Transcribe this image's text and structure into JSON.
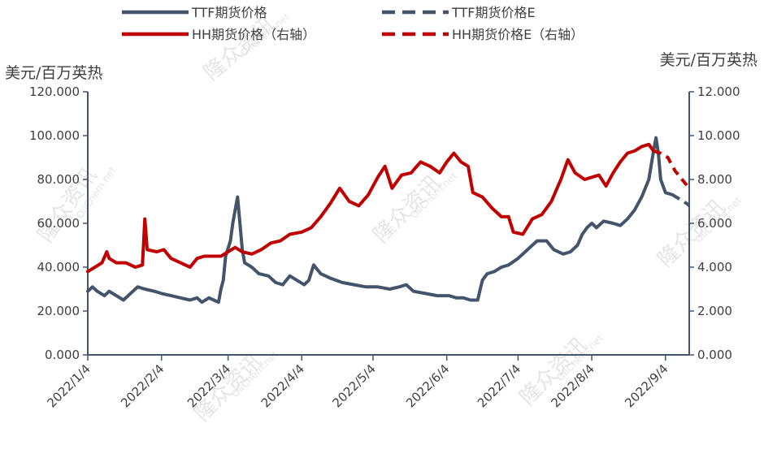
{
  "chart_data": {
    "type": "line",
    "left_unit": "美元/百万英热",
    "right_unit": "美元/百万英热",
    "left_axis": {
      "min": 0,
      "max": 120,
      "ticks": [
        "0.000",
        "20.000",
        "40.000",
        "60.000",
        "80.000",
        "100.000",
        "120.000"
      ]
    },
    "right_axis": {
      "min": 0,
      "max": 12,
      "ticks": [
        "0.000",
        "2.000",
        "4.000",
        "6.000",
        "8.000",
        "10.000",
        "12.000"
      ]
    },
    "x_range": [
      "2022-01-04",
      "2022-09-14"
    ],
    "x_ticks": [
      {
        "date": "2022-01-04",
        "label": "2022/1/4"
      },
      {
        "date": "2022-02-04",
        "label": "2022/2/4"
      },
      {
        "date": "2022-03-04",
        "label": "2022/3/4"
      },
      {
        "date": "2022-04-04",
        "label": "2022/4/4"
      },
      {
        "date": "2022-05-04",
        "label": "2022/5/4"
      },
      {
        "date": "2022-06-04",
        "label": "2022/6/4"
      },
      {
        "date": "2022-07-04",
        "label": "2022/7/4"
      },
      {
        "date": "2022-08-04",
        "label": "2022/8/4"
      },
      {
        "date": "2022-09-04",
        "label": "2022/9/4"
      }
    ],
    "legend": [
      {
        "label": "TTF期货价格",
        "color": "#44546a",
        "dash": false
      },
      {
        "label": "TTF期货价格E",
        "color": "#44546a",
        "dash": true
      },
      {
        "label": "HH期货价格（右轴）",
        "color": "#c00000",
        "dash": false
      },
      {
        "label": "HH期货价格E（右轴）",
        "color": "#c00000",
        "dash": true
      }
    ],
    "series": [
      {
        "name": "TTF期货价格",
        "axis": "left",
        "color": "#44546a",
        "points": [
          [
            "2022-01-04",
            29
          ],
          [
            "2022-01-06",
            31
          ],
          [
            "2022-01-08",
            29
          ],
          [
            "2022-01-11",
            27
          ],
          [
            "2022-01-13",
            29
          ],
          [
            "2022-01-16",
            27
          ],
          [
            "2022-01-19",
            25
          ],
          [
            "2022-01-22",
            28
          ],
          [
            "2022-01-25",
            31
          ],
          [
            "2022-01-28",
            30
          ],
          [
            "2022-02-01",
            29
          ],
          [
            "2022-02-04",
            28
          ],
          [
            "2022-02-08",
            27
          ],
          [
            "2022-02-12",
            26
          ],
          [
            "2022-02-16",
            25
          ],
          [
            "2022-02-19",
            26
          ],
          [
            "2022-02-21",
            24
          ],
          [
            "2022-02-24",
            26
          ],
          [
            "2022-02-26",
            25
          ],
          [
            "2022-02-28",
            24
          ],
          [
            "2022-03-01",
            30
          ],
          [
            "2022-03-02",
            34
          ],
          [
            "2022-03-03",
            45
          ],
          [
            "2022-03-05",
            52
          ],
          [
            "2022-03-06",
            60
          ],
          [
            "2022-03-07",
            66
          ],
          [
            "2022-03-08",
            72
          ],
          [
            "2022-03-09",
            60
          ],
          [
            "2022-03-10",
            48
          ],
          [
            "2022-03-11",
            42
          ],
          [
            "2022-03-14",
            40
          ],
          [
            "2022-03-17",
            37
          ],
          [
            "2022-03-21",
            36
          ],
          [
            "2022-03-24",
            33
          ],
          [
            "2022-03-27",
            32
          ],
          [
            "2022-03-30",
            36
          ],
          [
            "2022-04-02",
            34
          ],
          [
            "2022-04-05",
            32
          ],
          [
            "2022-04-07",
            34
          ],
          [
            "2022-04-09",
            41
          ],
          [
            "2022-04-12",
            37
          ],
          [
            "2022-04-16",
            35
          ],
          [
            "2022-04-21",
            33
          ],
          [
            "2022-04-26",
            32
          ],
          [
            "2022-05-01",
            31
          ],
          [
            "2022-05-06",
            31
          ],
          [
            "2022-05-11",
            30
          ],
          [
            "2022-05-15",
            31
          ],
          [
            "2022-05-18",
            32
          ],
          [
            "2022-05-21",
            29
          ],
          [
            "2022-05-26",
            28
          ],
          [
            "2022-05-31",
            27
          ],
          [
            "2022-06-05",
            27
          ],
          [
            "2022-06-08",
            26
          ],
          [
            "2022-06-11",
            26
          ],
          [
            "2022-06-14",
            25
          ],
          [
            "2022-06-17",
            25
          ],
          [
            "2022-06-19",
            34
          ],
          [
            "2022-06-21",
            37
          ],
          [
            "2022-06-24",
            38
          ],
          [
            "2022-06-27",
            40
          ],
          [
            "2022-06-30",
            41
          ],
          [
            "2022-07-04",
            44
          ],
          [
            "2022-07-08",
            48
          ],
          [
            "2022-07-12",
            52
          ],
          [
            "2022-07-16",
            52
          ],
          [
            "2022-07-19",
            48
          ],
          [
            "2022-07-23",
            46
          ],
          [
            "2022-07-26",
            47
          ],
          [
            "2022-07-29",
            50
          ],
          [
            "2022-07-31",
            55
          ],
          [
            "2022-08-02",
            58
          ],
          [
            "2022-08-04",
            60
          ],
          [
            "2022-08-06",
            58
          ],
          [
            "2022-08-09",
            61
          ],
          [
            "2022-08-13",
            60
          ],
          [
            "2022-08-16",
            59
          ],
          [
            "2022-08-19",
            62
          ],
          [
            "2022-08-22",
            66
          ],
          [
            "2022-08-25",
            72
          ],
          [
            "2022-08-28",
            80
          ],
          [
            "2022-08-30",
            93
          ],
          [
            "2022-08-31",
            99
          ],
          [
            "2022-09-01",
            92
          ],
          [
            "2022-09-02",
            80
          ],
          [
            "2022-09-04",
            74
          ],
          [
            "2022-09-07",
            73
          ]
        ]
      },
      {
        "name": "TTF期货价格E",
        "axis": "left",
        "color": "#44546a",
        "dash": true,
        "points": [
          [
            "2022-09-07",
            73
          ],
          [
            "2022-09-10",
            71
          ],
          [
            "2022-09-13",
            69
          ],
          [
            "2022-09-14",
            68
          ]
        ]
      },
      {
        "name": "HH期货价格（右轴）",
        "axis": "right",
        "color": "#c00000",
        "points": [
          [
            "2022-01-04",
            3.8
          ],
          [
            "2022-01-07",
            4.0
          ],
          [
            "2022-01-10",
            4.2
          ],
          [
            "2022-01-12",
            4.7
          ],
          [
            "2022-01-13",
            4.4
          ],
          [
            "2022-01-16",
            4.2
          ],
          [
            "2022-01-20",
            4.2
          ],
          [
            "2022-01-24",
            4.0
          ],
          [
            "2022-01-27",
            4.1
          ],
          [
            "2022-01-28",
            6.2
          ],
          [
            "2022-01-29",
            4.8
          ],
          [
            "2022-02-02",
            4.7
          ],
          [
            "2022-02-05",
            4.8
          ],
          [
            "2022-02-08",
            4.4
          ],
          [
            "2022-02-12",
            4.2
          ],
          [
            "2022-02-16",
            4.0
          ],
          [
            "2022-02-19",
            4.4
          ],
          [
            "2022-02-22",
            4.5
          ],
          [
            "2022-02-25",
            4.5
          ],
          [
            "2022-03-01",
            4.5
          ],
          [
            "2022-03-04",
            4.7
          ],
          [
            "2022-03-07",
            4.9
          ],
          [
            "2022-03-10",
            4.7
          ],
          [
            "2022-03-14",
            4.6
          ],
          [
            "2022-03-18",
            4.8
          ],
          [
            "2022-03-22",
            5.1
          ],
          [
            "2022-03-26",
            5.2
          ],
          [
            "2022-03-30",
            5.5
          ],
          [
            "2022-04-04",
            5.6
          ],
          [
            "2022-04-08",
            5.8
          ],
          [
            "2022-04-12",
            6.3
          ],
          [
            "2022-04-16",
            6.9
          ],
          [
            "2022-04-20",
            7.6
          ],
          [
            "2022-04-24",
            7.0
          ],
          [
            "2022-04-28",
            6.8
          ],
          [
            "2022-05-02",
            7.3
          ],
          [
            "2022-05-06",
            8.1
          ],
          [
            "2022-05-09",
            8.6
          ],
          [
            "2022-05-12",
            7.6
          ],
          [
            "2022-05-16",
            8.2
          ],
          [
            "2022-05-20",
            8.3
          ],
          [
            "2022-05-24",
            8.8
          ],
          [
            "2022-05-28",
            8.6
          ],
          [
            "2022-06-01",
            8.3
          ],
          [
            "2022-06-04",
            8.8
          ],
          [
            "2022-06-07",
            9.2
          ],
          [
            "2022-06-10",
            8.8
          ],
          [
            "2022-06-13",
            8.6
          ],
          [
            "2022-06-15",
            7.4
          ],
          [
            "2022-06-19",
            7.2
          ],
          [
            "2022-06-23",
            6.7
          ],
          [
            "2022-06-27",
            6.3
          ],
          [
            "2022-06-30",
            6.3
          ],
          [
            "2022-07-02",
            5.6
          ],
          [
            "2022-07-06",
            5.5
          ],
          [
            "2022-07-10",
            6.2
          ],
          [
            "2022-07-14",
            6.4
          ],
          [
            "2022-07-18",
            7.0
          ],
          [
            "2022-07-22",
            8.0
          ],
          [
            "2022-07-25",
            8.9
          ],
          [
            "2022-07-28",
            8.3
          ],
          [
            "2022-08-01",
            8.0
          ],
          [
            "2022-08-04",
            8.1
          ],
          [
            "2022-08-07",
            8.2
          ],
          [
            "2022-08-10",
            7.7
          ],
          [
            "2022-08-13",
            8.3
          ],
          [
            "2022-08-16",
            8.8
          ],
          [
            "2022-08-19",
            9.2
          ],
          [
            "2022-08-22",
            9.3
          ],
          [
            "2022-08-25",
            9.5
          ],
          [
            "2022-08-28",
            9.6
          ],
          [
            "2022-08-30",
            9.3
          ]
        ]
      },
      {
        "name": "HH期货价格E（右轴）",
        "axis": "right",
        "color": "#c00000",
        "dash": true,
        "points": [
          [
            "2022-08-30",
            9.3
          ],
          [
            "2022-09-02",
            9.2
          ],
          [
            "2022-09-05",
            9.0
          ],
          [
            "2022-09-08",
            8.4
          ],
          [
            "2022-09-11",
            8.0
          ],
          [
            "2022-09-14",
            7.6
          ]
        ]
      }
    ]
  },
  "watermarks": [
    "隆众资讯",
    "OilChem.net"
  ],
  "colors": {
    "ttf": "#44546a",
    "hh": "#c00000",
    "axis": "#44546a",
    "text": "#404040"
  }
}
